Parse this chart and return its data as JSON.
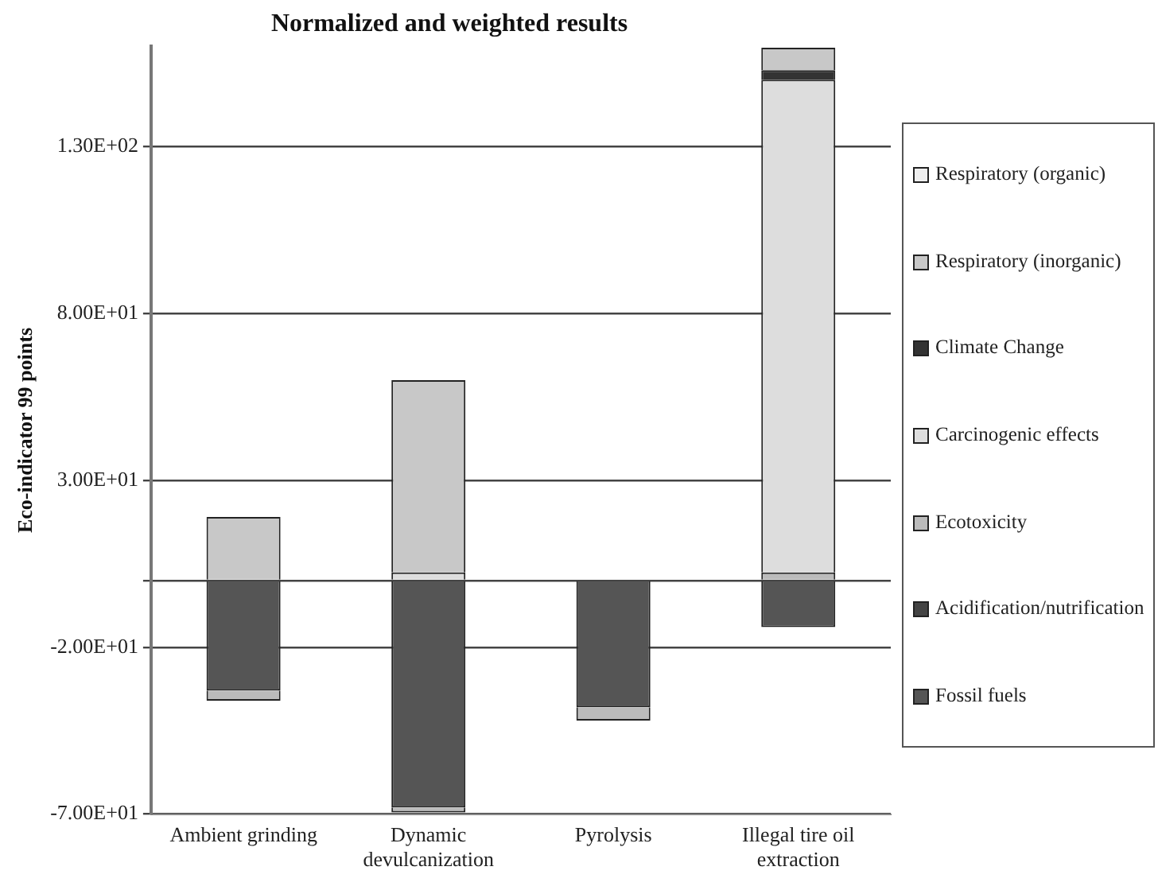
{
  "chart_data": {
    "type": "bar",
    "title": "Normalized and weighted results",
    "ylabel": "Eco-indicator 99 points",
    "stacked": true,
    "grid": "y",
    "legend": "right",
    "categories": [
      "Ambient grinding",
      "Dynamic devulcanization",
      "Pyrolysis",
      "Illegal tire oil extraction"
    ],
    "ylim": [
      -70,
      160
    ],
    "yticks": [
      {
        "value": 130,
        "label": "1.30E+02"
      },
      {
        "value": 80,
        "label": "8.00E+01"
      },
      {
        "value": 30,
        "label": "3.00E+01"
      },
      {
        "value": 0,
        "label": null
      },
      {
        "value": -20,
        "label": "-2.00E+01"
      },
      {
        "value": -70,
        "label": "-7.00E+01"
      }
    ],
    "series": [
      {
        "name": "Fossil fuels",
        "color": "#555555",
        "values": [
          -33,
          -68,
          -38,
          -14
        ]
      },
      {
        "name": "Acidification/nutrification",
        "color": "#444444",
        "values": [
          null,
          null,
          null,
          null
        ]
      },
      {
        "name": "Ecotoxicity",
        "color": "#bbbbbb",
        "values": [
          -3,
          -1.5,
          -4,
          2.4
        ]
      },
      {
        "name": "Carcinogenic effects",
        "color": "#dddddd",
        "values": [
          null,
          2.4,
          null,
          147.6
        ]
      },
      {
        "name": "Climate Change",
        "color": "#333333",
        "values": [
          null,
          null,
          null,
          2.9
        ]
      },
      {
        "name": "Respiratory (inorganic)",
        "color": "#c8c8c8",
        "values": [
          19,
          57.6,
          null,
          6.7
        ]
      },
      {
        "name": "Respiratory (organic)",
        "color": "#eeeeee",
        "values": [
          null,
          null,
          null,
          null
        ]
      }
    ]
  }
}
